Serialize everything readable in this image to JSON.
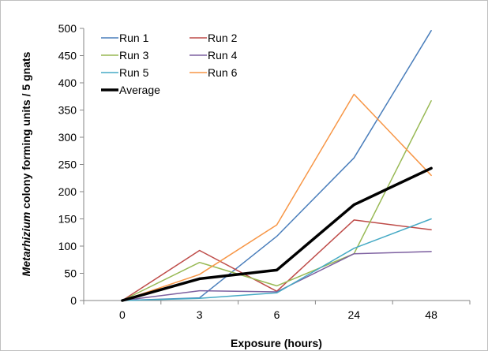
{
  "chart_data": {
    "type": "line",
    "title": "",
    "xlabel": "Exposure (hours)",
    "ylabel_italic": "Metarhizium",
    "ylabel_rest": " colony forming units / 5 gnats",
    "categories": [
      "0",
      "3",
      "6",
      "24",
      "48"
    ],
    "ylim": [
      0,
      500
    ],
    "yticks": [
      "0",
      "50",
      "100",
      "150",
      "200",
      "250",
      "300",
      "350",
      "400",
      "450",
      "500"
    ],
    "grid": false,
    "legend_position": "top-left",
    "series": [
      {
        "name": "Run 1",
        "color": "#4a7ebb",
        "width": 1.5,
        "values": [
          0,
          5,
          118,
          262,
          496
        ]
      },
      {
        "name": "Run 2",
        "color": "#be4b48",
        "width": 1.5,
        "values": [
          0,
          92,
          17,
          148,
          130
        ]
      },
      {
        "name": "Run 3",
        "color": "#98b954",
        "width": 1.5,
        "values": [
          0,
          70,
          27,
          86,
          367
        ]
      },
      {
        "name": "Run 4",
        "color": "#7d60a0",
        "width": 1.5,
        "values": [
          0,
          18,
          16,
          86,
          90
        ]
      },
      {
        "name": "Run 5",
        "color": "#46aac5",
        "width": 1.5,
        "values": [
          0,
          4,
          14,
          96,
          150
        ]
      },
      {
        "name": "Run 6",
        "color": "#f79646",
        "width": 1.5,
        "values": [
          0,
          48,
          139,
          379,
          230
        ]
      },
      {
        "name": "Average",
        "color": "#000000",
        "width": 3.5,
        "values": [
          0,
          40,
          56,
          176,
          243
        ]
      }
    ]
  }
}
